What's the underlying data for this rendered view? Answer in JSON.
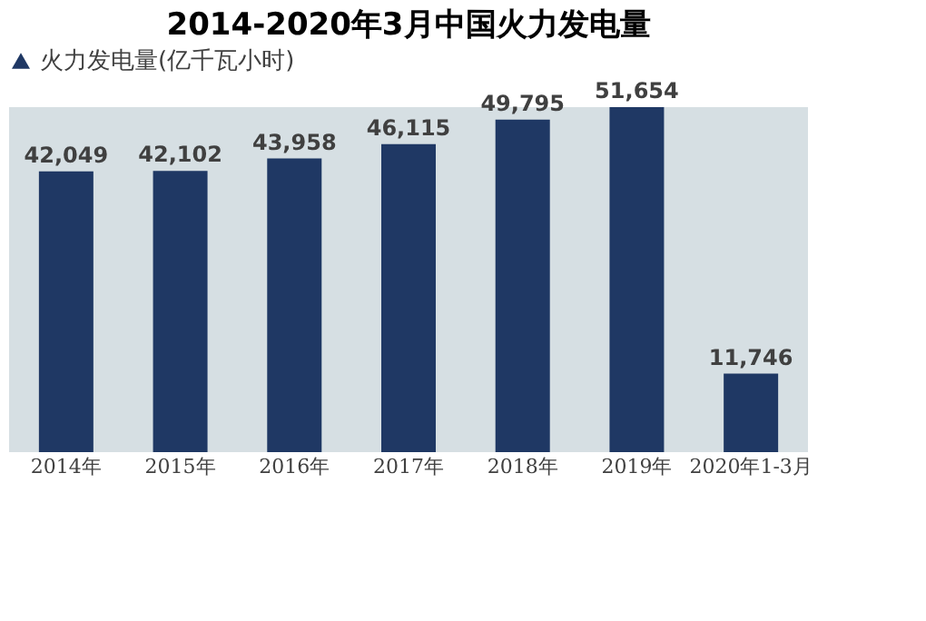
{
  "chart_data": {
    "type": "bar",
    "title": "2014-2020年3月中国火力发电量",
    "categories": [
      "2014年",
      "2015年",
      "2016年",
      "2017年",
      "2018年",
      "2019年",
      "2020年1-3月"
    ],
    "series": [
      {
        "name": "火力发电量(亿千瓦小时)",
        "color": "#1f3864",
        "values": [
          42049,
          42102,
          43958,
          46115,
          49795,
          51654,
          11746
        ],
        "value_labels": [
          "42,049",
          "42,102",
          "43,958",
          "46,115",
          "49,795",
          "51,654",
          "11,746"
        ]
      }
    ],
    "tick_labels": "x",
    "legend": "top"
  }
}
